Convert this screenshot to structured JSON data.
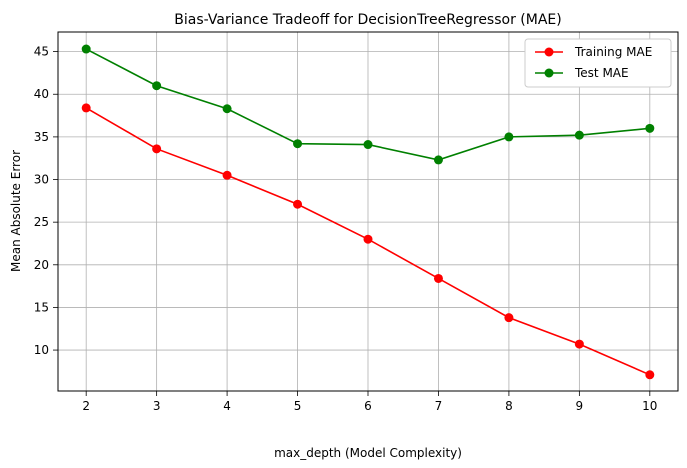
{
  "chart_data": {
    "type": "line",
    "title": "Bias-Variance Tradeoff for DecisionTreeRegressor (MAE)",
    "xlabel": "max_depth (Model Complexity)",
    "ylabel": "Mean Absolute Error",
    "x": [
      2,
      3,
      4,
      5,
      6,
      7,
      8,
      9,
      10
    ],
    "xlim": [
      1.6,
      10.4
    ],
    "ylim": [
      5.2,
      47.3
    ],
    "xticks": [
      "2",
      "3",
      "4",
      "5",
      "6",
      "7",
      "8",
      "9",
      "10"
    ],
    "yticks": [
      "10",
      "15",
      "20",
      "25",
      "30",
      "35",
      "40",
      "45"
    ],
    "grid": true,
    "legend_position": "top-right",
    "series": [
      {
        "name": "Training MAE",
        "color": "#ff0000",
        "marker": "circle",
        "values": [
          38.4,
          33.6,
          30.5,
          27.1,
          23.0,
          18.4,
          13.8,
          10.7,
          7.1
        ]
      },
      {
        "name": "Test MAE",
        "color": "#008000",
        "marker": "circle",
        "values": [
          45.3,
          41.0,
          38.3,
          34.2,
          34.1,
          32.3,
          35.0,
          35.2,
          36.0
        ]
      }
    ]
  }
}
